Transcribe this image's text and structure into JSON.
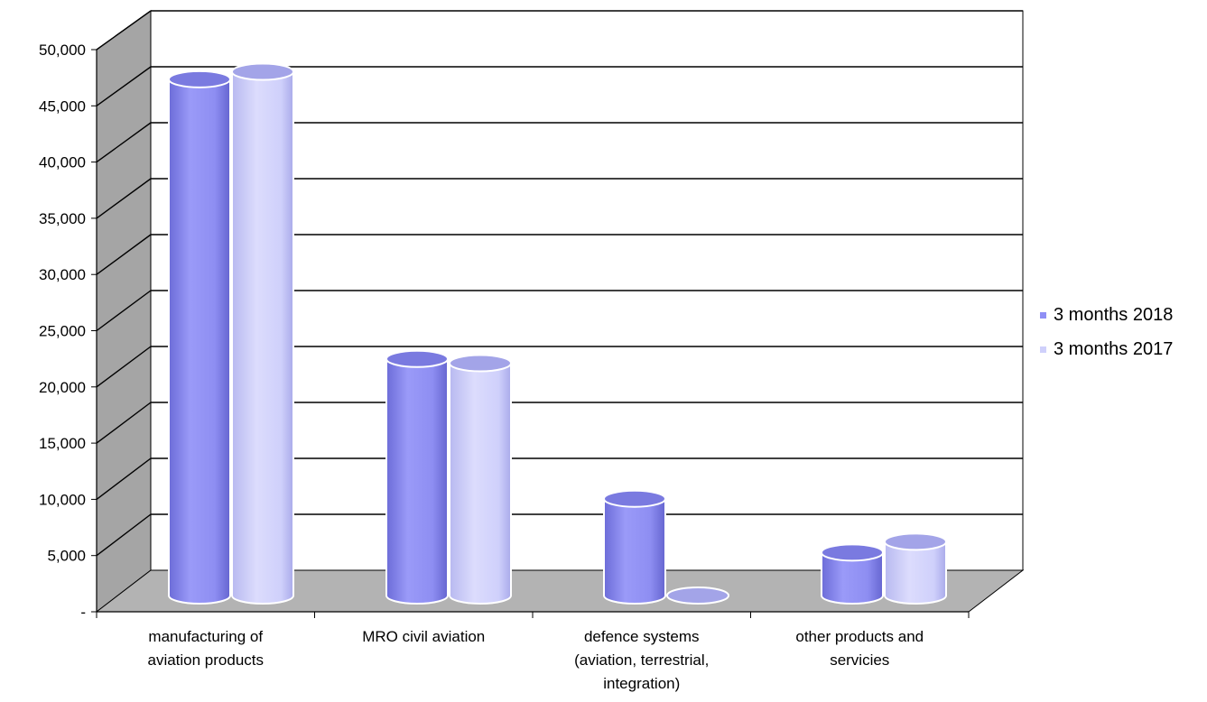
{
  "chart_data": {
    "type": "bar",
    "categories": [
      [
        "manufacturing of",
        "aviation products"
      ],
      [
        "MRO civil aviation"
      ],
      [
        "defence systems",
        "(aviation, terrestrial,",
        "integration)"
      ],
      [
        "other products and",
        "servicies"
      ]
    ],
    "series": [
      {
        "name": "3 months 2018",
        "color": "#8f8ff5",
        "values": [
          48000,
          22000,
          9000,
          4000
        ]
      },
      {
        "name": "3 months 2017",
        "color": "#cfd0fb",
        "values": [
          48700,
          21600,
          0,
          5000
        ]
      }
    ],
    "ylim": [
      0,
      50000
    ],
    "yticks": [
      "-",
      "5,000",
      "10,000",
      "15,000",
      "20,000",
      "25,000",
      "30,000",
      "35,000",
      "40,000",
      "45,000",
      "50,000"
    ],
    "grid": true,
    "style": "3d-cylinder",
    "legend_position": "right"
  }
}
